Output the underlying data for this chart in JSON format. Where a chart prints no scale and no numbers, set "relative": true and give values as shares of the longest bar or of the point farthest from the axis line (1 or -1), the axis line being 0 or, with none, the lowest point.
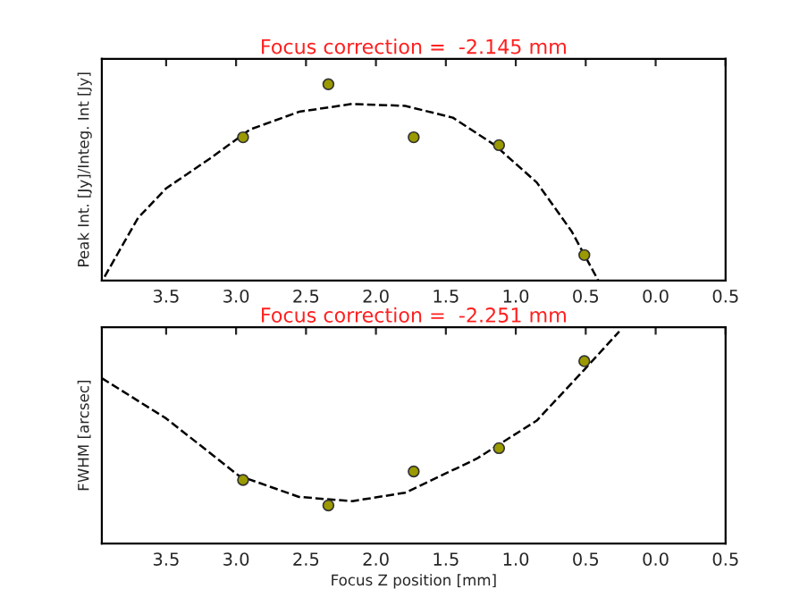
{
  "chart_data": [
    {
      "type": "scatter",
      "title": "Focus correction =  -2.145 mm",
      "ylabel": "Peak Int. [Jy]/Integ. Int [Jy]",
      "relative": true,
      "tick_labels": "x",
      "grid": false,
      "legend": false,
      "xlim": [
        -3.96,
        0.5
      ],
      "xticks": [
        {
          "value": -3.5,
          "label": "3.5"
        },
        {
          "value": -3.0,
          "label": "3.0"
        },
        {
          "value": -2.5,
          "label": "2.5"
        },
        {
          "value": -2.0,
          "label": "2.0"
        },
        {
          "value": -1.5,
          "label": "1.5"
        },
        {
          "value": -1.0,
          "label": "1.0"
        },
        {
          "value": -0.5,
          "label": "0.5"
        },
        {
          "value": 0.0,
          "label": "0.0"
        },
        {
          "value": 0.5,
          "label": "0.5"
        }
      ],
      "series": [
        {
          "color": "#9a9a00",
          "marker": "circle",
          "x": [
            -2.95,
            -2.34,
            -1.73,
            -1.12,
            -0.51
          ],
          "values": [
            0.73,
            1.0,
            0.73,
            0.69,
            0.13
          ]
        },
        {
          "type": "line",
          "color": "#000000",
          "line_style": "dashed",
          "marker": "none",
          "x": [
            -3.94,
            -3.7,
            -3.5,
            -3.19,
            -2.9,
            -2.55,
            -2.17,
            -1.79,
            -1.45,
            -1.15,
            -0.85,
            -0.6,
            -0.41
          ],
          "values": [
            0.02,
            0.32,
            0.47,
            0.62,
            0.77,
            0.86,
            0.9,
            0.89,
            0.83,
            0.69,
            0.5,
            0.25,
            0.0
          ]
        }
      ]
    },
    {
      "type": "scatter",
      "title": "Focus correction =  -2.251 mm",
      "ylabel": "FWHM [arcsec]",
      "xlabel": "Focus Z position [mm]",
      "relative": true,
      "tick_labels": "x",
      "grid": false,
      "legend": false,
      "xlim": [
        -3.96,
        0.5
      ],
      "xticks": [
        {
          "value": -3.5,
          "label": "3.5"
        },
        {
          "value": -3.0,
          "label": "3.0"
        },
        {
          "value": -2.5,
          "label": "2.5"
        },
        {
          "value": -2.0,
          "label": "2.0"
        },
        {
          "value": -1.5,
          "label": "1.5"
        },
        {
          "value": -1.0,
          "label": "1.0"
        },
        {
          "value": -0.5,
          "label": "0.5"
        },
        {
          "value": 0.0,
          "label": "0.0"
        },
        {
          "value": 0.5,
          "label": "0.5"
        }
      ],
      "series": [
        {
          "color": "#9a9a00",
          "marker": "circle",
          "x": [
            -2.95,
            -2.34,
            -1.73,
            -1.12,
            -0.51
          ],
          "values": [
            0.3,
            0.18,
            0.34,
            0.45,
            0.86
          ]
        },
        {
          "type": "line",
          "color": "#000000",
          "line_style": "dashed",
          "marker": "none",
          "x": [
            -3.96,
            -3.5,
            -2.98,
            -2.55,
            -2.17,
            -1.79,
            -1.28,
            -0.85,
            -0.51,
            -0.26
          ],
          "values": [
            0.78,
            0.59,
            0.32,
            0.22,
            0.2,
            0.24,
            0.4,
            0.58,
            0.82,
            1.0
          ]
        }
      ]
    }
  ]
}
